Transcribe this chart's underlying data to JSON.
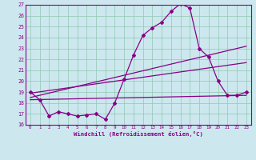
{
  "xlabel": "Windchill (Refroidissement éolien,°C)",
  "bg_color": "#cce8ee",
  "grid_color": "#99ccbb",
  "line_color": "#880088",
  "spine_color": "#880088",
  "xlim": [
    -0.5,
    23.5
  ],
  "ylim": [
    16,
    27
  ],
  "xticks": [
    0,
    1,
    2,
    3,
    4,
    5,
    6,
    7,
    8,
    9,
    10,
    11,
    12,
    13,
    14,
    15,
    16,
    17,
    18,
    19,
    20,
    21,
    22,
    23
  ],
  "yticks": [
    16,
    17,
    18,
    19,
    20,
    21,
    22,
    23,
    24,
    25,
    26,
    27
  ],
  "series1_x": [
    0,
    1,
    2,
    3,
    4,
    5,
    6,
    7,
    8,
    9,
    10,
    11,
    12,
    13,
    14,
    15,
    16,
    17,
    18,
    19,
    20,
    21,
    22,
    23
  ],
  "series1_y": [
    19.0,
    18.3,
    16.8,
    17.2,
    17.0,
    16.8,
    16.9,
    17.0,
    16.5,
    18.0,
    20.2,
    22.4,
    24.2,
    24.9,
    25.4,
    26.4,
    27.1,
    26.7,
    23.0,
    22.2,
    20.0,
    18.7,
    18.7,
    19.0
  ],
  "series2_x": [
    0,
    23
  ],
  "series2_y": [
    18.3,
    18.7
  ],
  "series3_x": [
    0,
    23
  ],
  "series3_y": [
    18.5,
    23.2
  ],
  "series4_x": [
    0,
    23
  ],
  "series4_y": [
    18.9,
    21.7
  ]
}
